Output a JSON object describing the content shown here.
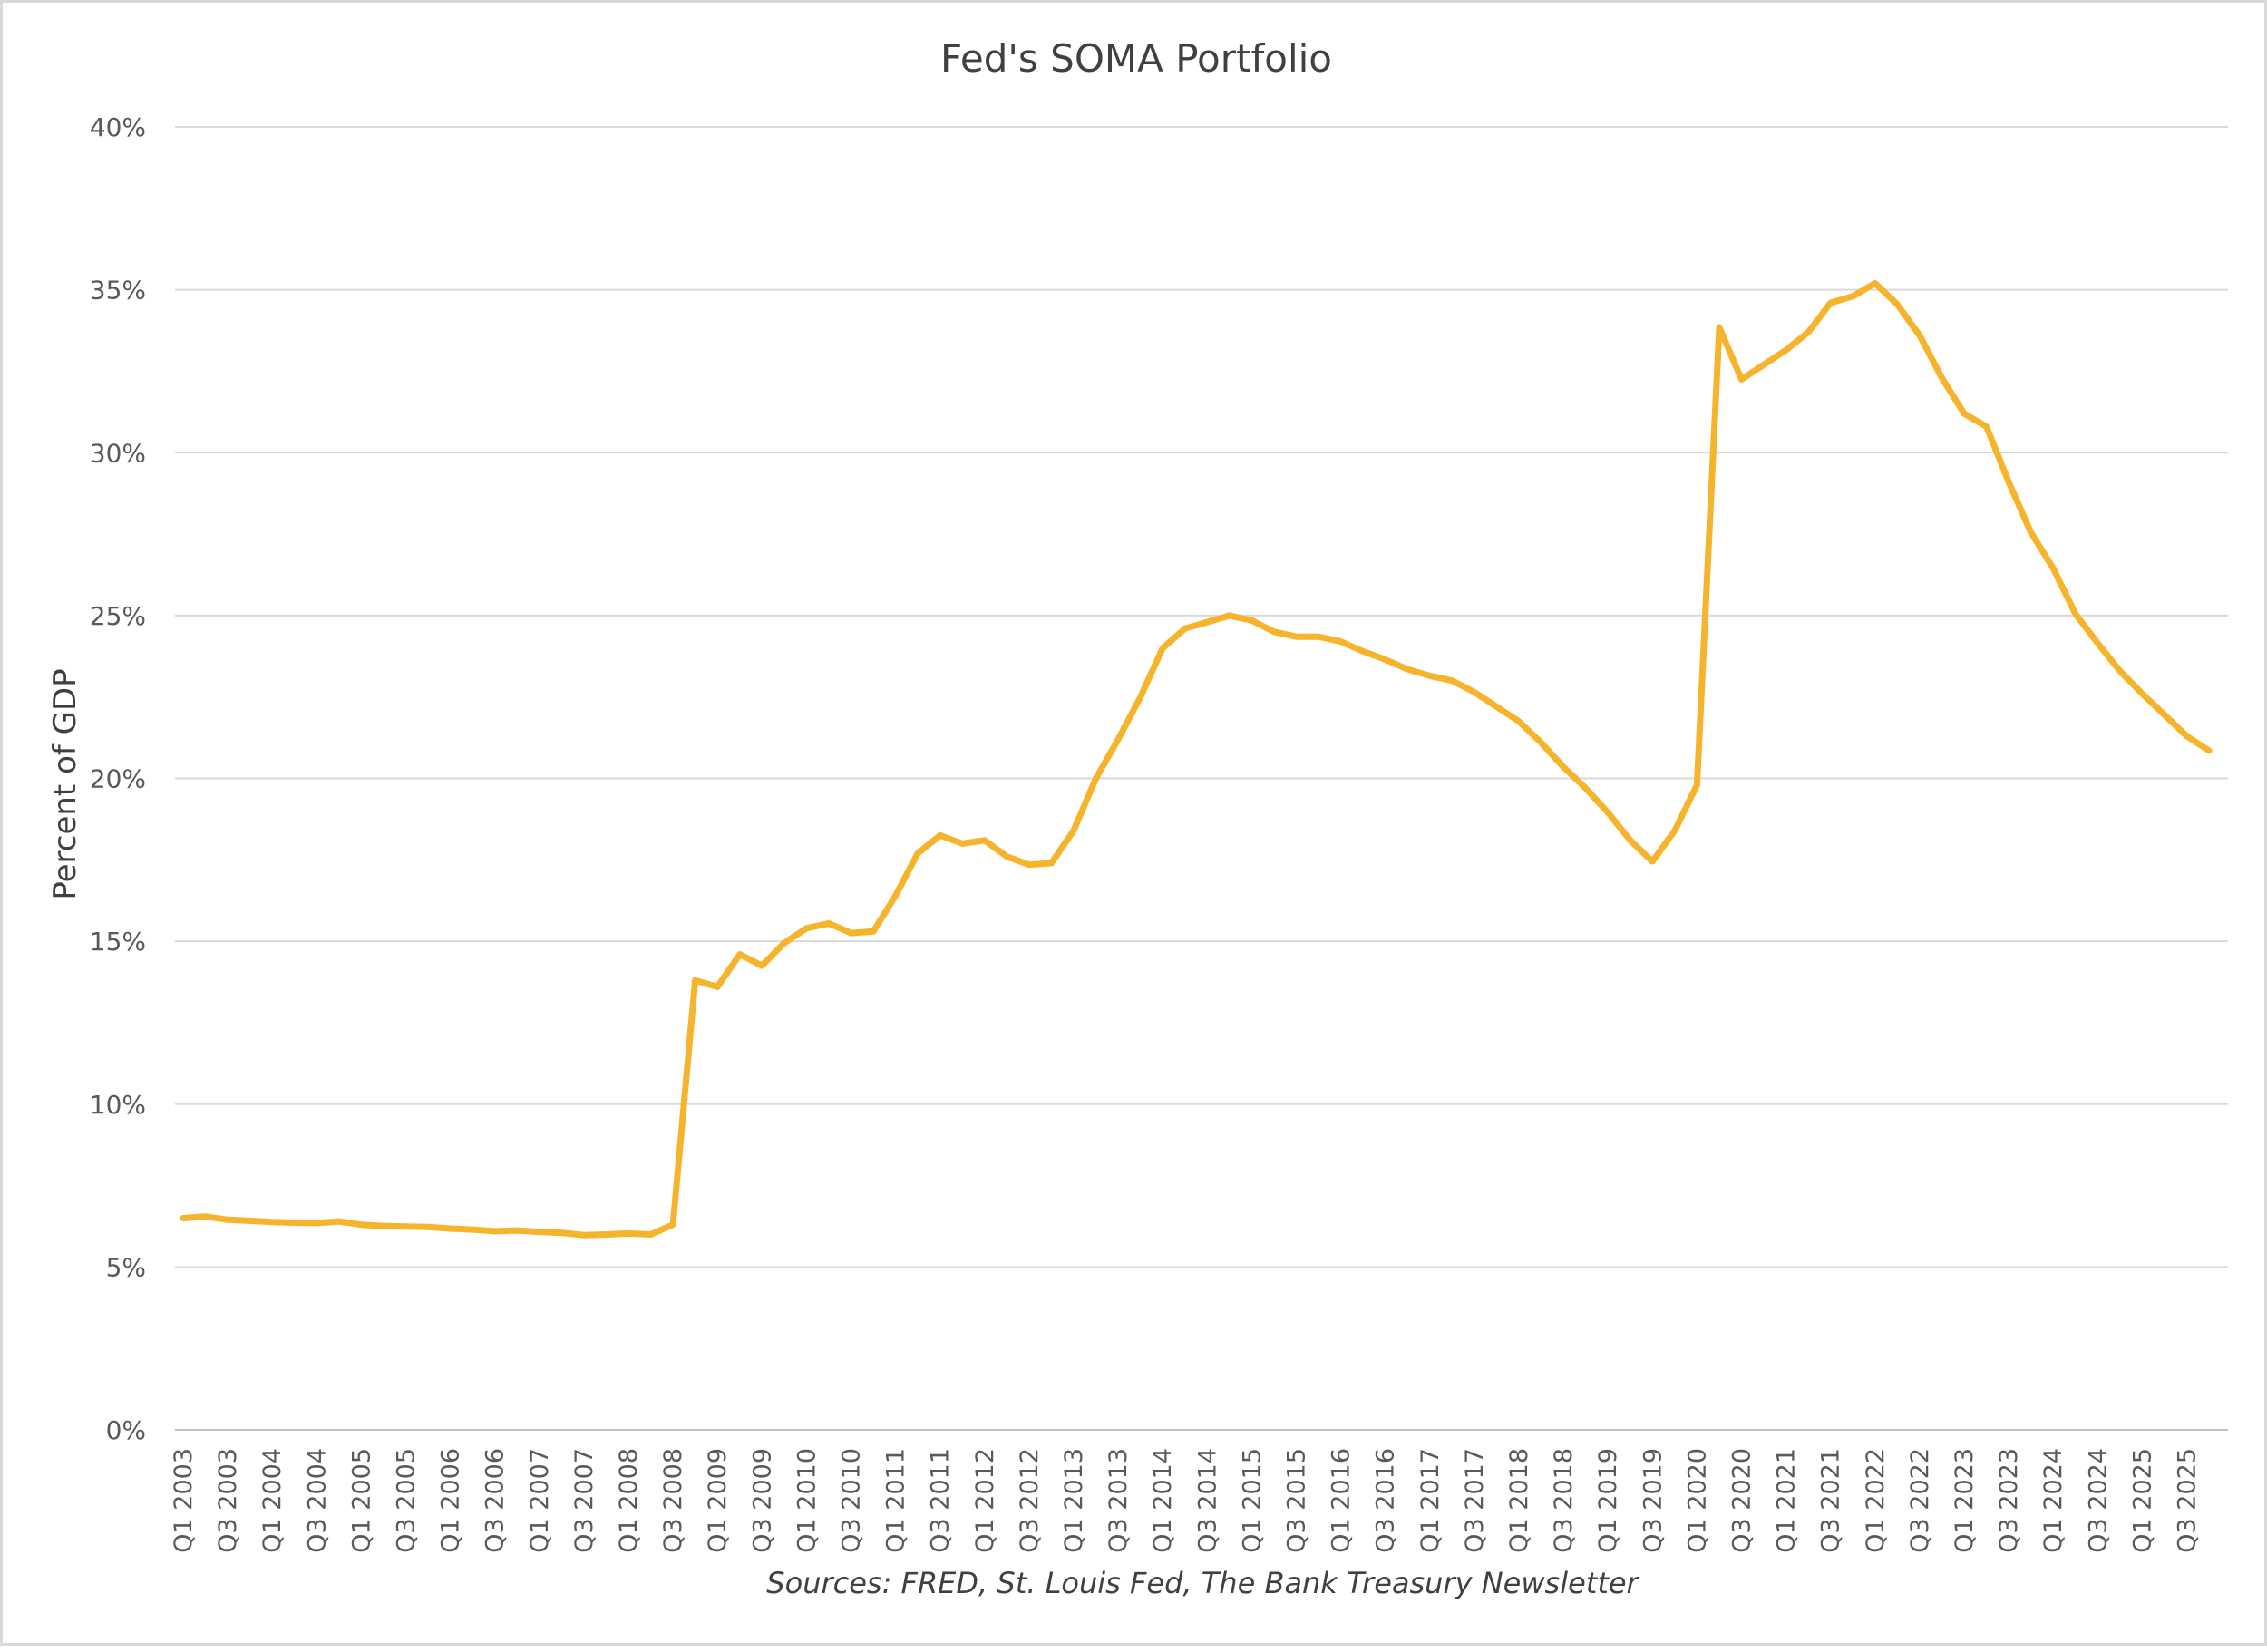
{
  "chart_data": {
    "type": "line",
    "title": "Fed's SOMA Portfolio",
    "xlabel": "",
    "ylabel": "Percent of GDP",
    "source_note": "Sources: FRED, St. Louis Fed, The Bank Treasury Newsletter",
    "ylim": [
      0,
      40
    ],
    "y_ticks": [
      "0%",
      "5%",
      "10%",
      "15%",
      "20%",
      "25%",
      "30%",
      "35%",
      "40%"
    ],
    "y_tick_values": [
      0,
      5,
      10,
      15,
      20,
      25,
      30,
      35,
      40
    ],
    "grid": true,
    "line_color": "#F6B42C",
    "x_labels": [
      "Q1 2003",
      "Q3 2003",
      "Q1 2004",
      "Q3 2004",
      "Q1 2005",
      "Q3 2005",
      "Q1 2006",
      "Q3 2006",
      "Q1 2007",
      "Q3 2007",
      "Q1 2008",
      "Q3 2008",
      "Q1 2009",
      "Q3 2009",
      "Q1 2010",
      "Q3 2010",
      "Q1 2011",
      "Q3 2011",
      "Q1 2012",
      "Q3 2012",
      "Q1 2013",
      "Q3 2013",
      "Q1 2014",
      "Q3 2014",
      "Q1 2015",
      "Q3 2015",
      "Q1 2016",
      "Q3 2016",
      "Q1 2017",
      "Q3 2017",
      "Q1 2018",
      "Q3 2018",
      "Q1 2019",
      "Q3 2019",
      "Q1 2020",
      "Q3 2020",
      "Q1 2021",
      "Q3 2021",
      "Q1 2022",
      "Q3 2022",
      "Q1 2023",
      "Q3 2023",
      "Q1 2024",
      "Q3 2024",
      "Q1 2025",
      "Q3 2025"
    ],
    "series": [
      {
        "x_start": "Q1 2003",
        "x_end": "Q4 2025",
        "values": [
          6.5,
          6.55,
          6.45,
          6.42,
          6.38,
          6.36,
          6.35,
          6.4,
          6.3,
          6.26,
          6.24,
          6.23,
          6.18,
          6.15,
          6.1,
          6.12,
          6.08,
          6.05,
          5.98,
          6.0,
          6.03,
          6.0,
          6.3,
          13.8,
          13.6,
          14.6,
          14.25,
          14.95,
          15.4,
          15.55,
          15.25,
          15.3,
          16.4,
          17.7,
          18.25,
          18.0,
          18.1,
          17.6,
          17.35,
          17.4,
          18.4,
          20.0,
          21.2,
          22.5,
          24.0,
          24.6,
          24.8,
          25.0,
          24.85,
          24.5,
          24.35,
          24.35,
          24.2,
          23.9,
          23.65,
          23.35,
          23.15,
          23.0,
          22.65,
          22.2,
          21.75,
          21.1,
          20.35,
          19.7,
          18.95,
          18.1,
          17.45,
          18.4,
          19.8,
          33.85,
          32.25,
          32.7,
          33.15,
          33.7,
          34.6,
          34.8,
          35.2,
          34.55,
          33.6,
          32.3,
          31.2,
          30.8,
          29.1,
          27.55,
          26.45,
          25.05,
          24.15,
          23.3,
          22.6,
          21.95,
          21.3,
          20.85
        ]
      }
    ]
  }
}
